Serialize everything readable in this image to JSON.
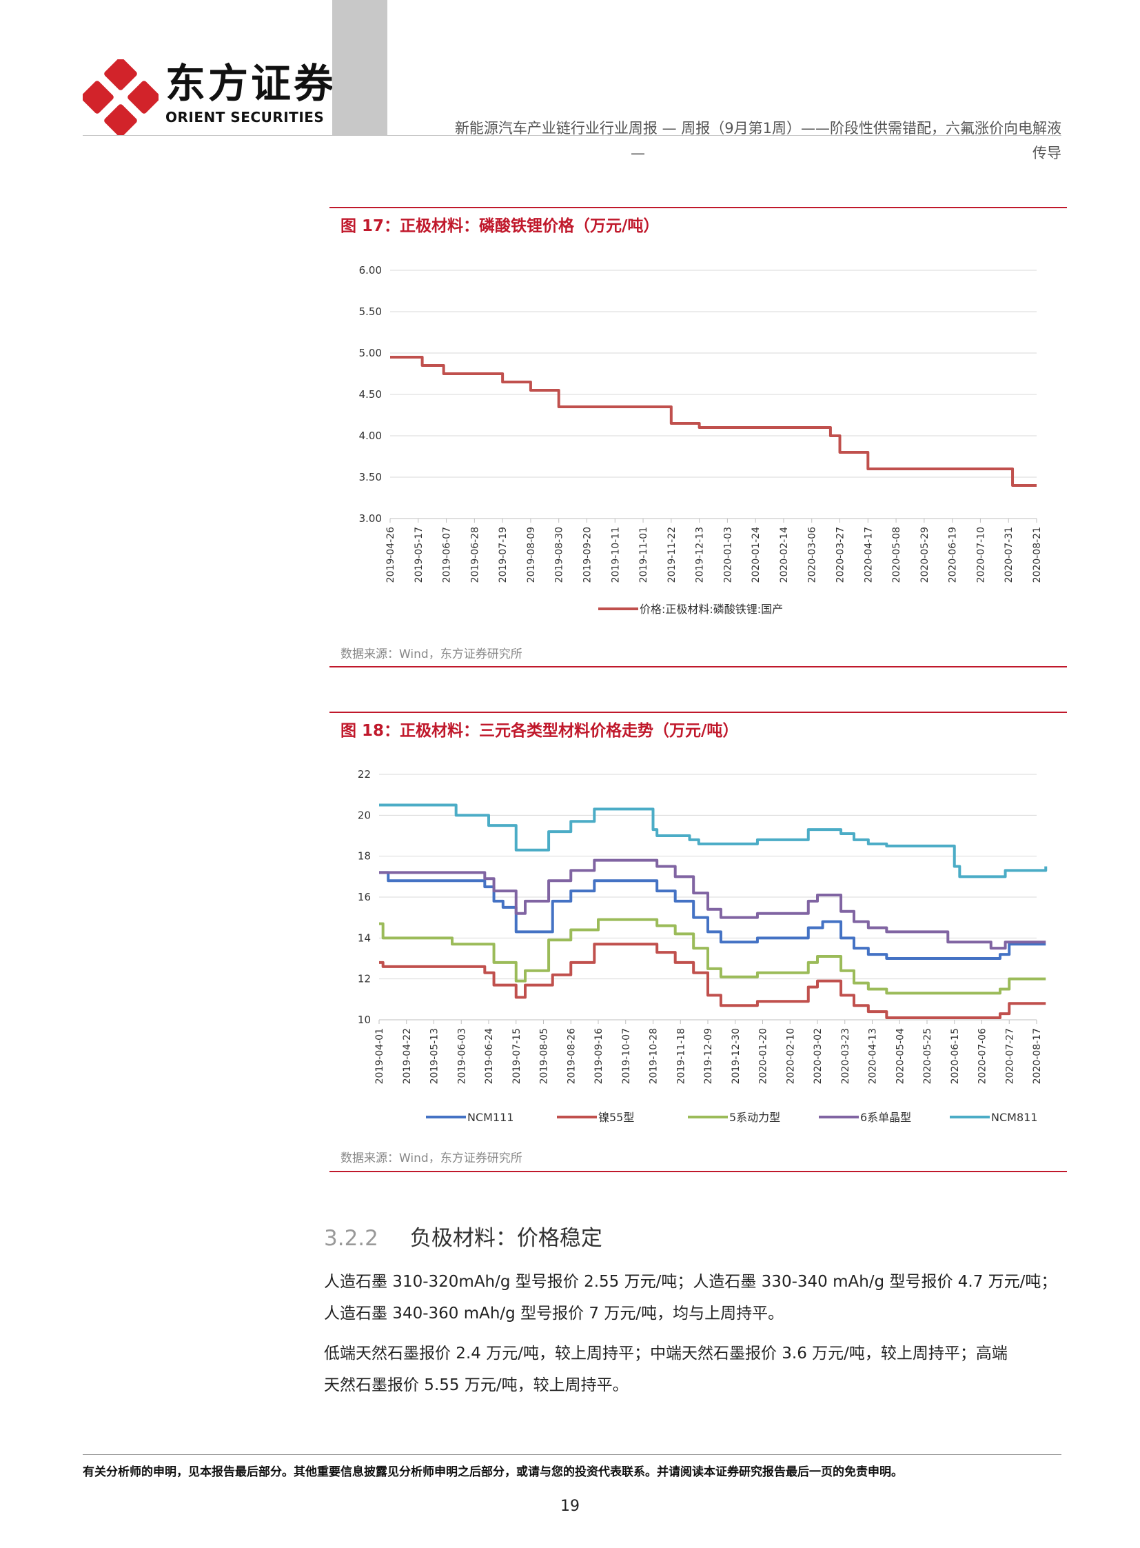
{
  "header": {
    "brand_cn": "东方证券",
    "brand_en": "ORIENT SECURITIES",
    "title_line1": "新能源汽车产业链行业行业周报 — 周报（9月第1周）——阶段性供需错配，六氟涨价向电解液",
    "title_line2_left": "—",
    "title_line2_right": "传导",
    "brand_color": "#d2232a"
  },
  "figure17": {
    "title": "图 17：正极材料：磷酸铁锂价格（万元/吨）",
    "source": "数据来源：Wind，东方证券研究所"
  },
  "figure18": {
    "title": "图 18：正极材料：三元各类型材料价格走势（万元/吨）",
    "source": "数据来源：Wind，东方证券研究所"
  },
  "chart_data": [
    {
      "type": "line",
      "step": true,
      "ylim": [
        3.0,
        6.0
      ],
      "yticks": [
        "3.00",
        "3.50",
        "4.00",
        "4.50",
        "5.00",
        "5.50",
        "6.00"
      ],
      "xlabels": [
        "2019-04-26",
        "2019-05-17",
        "2019-06-07",
        "2019-06-28",
        "2019-07-19",
        "2019-08-09",
        "2019-08-30",
        "2019-09-20",
        "2019-10-11",
        "2019-11-01",
        "2019-11-22",
        "2019-12-13",
        "2020-01-03",
        "2020-01-24",
        "2020-02-14",
        "2020-03-06",
        "2020-03-27",
        "2020-04-17",
        "2020-05-08",
        "2020-05-29",
        "2020-06-19",
        "2020-07-10",
        "2020-07-31",
        "2020-08-21"
      ],
      "legend_position": "bottom",
      "grid": true,
      "series": [
        {
          "name": "价格:正极材料:磷酸铁锂:国产",
          "color": "#c0504d",
          "points": [
            [
              "2019-04-26",
              4.95
            ],
            [
              "2019-05-20",
              4.85
            ],
            [
              "2019-06-05",
              4.75
            ],
            [
              "2019-07-19",
              4.65
            ],
            [
              "2019-08-09",
              4.55
            ],
            [
              "2019-08-30",
              4.35
            ],
            [
              "2019-11-22",
              4.15
            ],
            [
              "2019-12-13",
              4.1
            ],
            [
              "2020-03-20",
              4.0
            ],
            [
              "2020-03-27",
              3.8
            ],
            [
              "2020-04-17",
              3.6
            ],
            [
              "2020-07-31",
              3.6
            ],
            [
              "2020-08-03",
              3.4
            ],
            [
              "2020-08-21",
              3.4
            ]
          ]
        }
      ]
    },
    {
      "type": "line",
      "step": true,
      "ylim": [
        10,
        22
      ],
      "yticks": [
        "10",
        "12",
        "14",
        "16",
        "18",
        "20",
        "22"
      ],
      "xlabels": [
        "2019-04-01",
        "2019-04-22",
        "2019-05-13",
        "2019-06-03",
        "2019-06-24",
        "2019-07-15",
        "2019-08-05",
        "2019-08-26",
        "2019-09-16",
        "2019-10-07",
        "2019-10-28",
        "2019-11-18",
        "2019-12-09",
        "2019-12-30",
        "2020-01-20",
        "2020-02-10",
        "2020-03-02",
        "2020-03-23",
        "2020-04-13",
        "2020-05-04",
        "2020-05-25",
        "2020-06-15",
        "2020-07-06",
        "2020-07-27",
        "2020-08-17"
      ],
      "legend_position": "bottom",
      "grid": true,
      "series": [
        {
          "name": "NCM111",
          "color": "#4472c4",
          "points": [
            [
              "2019-04-01",
              17.2
            ],
            [
              "2019-04-08",
              16.8
            ],
            [
              "2019-06-21",
              16.5
            ],
            [
              "2019-06-28",
              15.8
            ],
            [
              "2019-07-05",
              15.5
            ],
            [
              "2019-07-15",
              14.3
            ],
            [
              "2019-08-12",
              15.8
            ],
            [
              "2019-08-26",
              16.3
            ],
            [
              "2019-09-13",
              16.8
            ],
            [
              "2019-10-31",
              16.3
            ],
            [
              "2019-11-14",
              15.8
            ],
            [
              "2019-11-28",
              15.0
            ],
            [
              "2019-12-09",
              14.3
            ],
            [
              "2019-12-19",
              13.8
            ],
            [
              "2020-01-16",
              14.0
            ],
            [
              "2020-02-24",
              14.5
            ],
            [
              "2020-03-06",
              14.8
            ],
            [
              "2020-03-20",
              14.0
            ],
            [
              "2020-03-30",
              13.5
            ],
            [
              "2020-04-10",
              13.2
            ],
            [
              "2020-04-24",
              13.0
            ],
            [
              "2020-07-20",
              13.2
            ],
            [
              "2020-07-27",
              13.7
            ],
            [
              "2020-08-24",
              13.7
            ]
          ]
        },
        {
          "name": "镍55型",
          "color": "#c0504d",
          "points": [
            [
              "2019-04-01",
              12.8
            ],
            [
              "2019-04-04",
              12.6
            ],
            [
              "2019-06-21",
              12.3
            ],
            [
              "2019-06-28",
              11.7
            ],
            [
              "2019-07-15",
              11.1
            ],
            [
              "2019-07-22",
              11.7
            ],
            [
              "2019-08-12",
              12.2
            ],
            [
              "2019-08-26",
              12.8
            ],
            [
              "2019-09-13",
              13.7
            ],
            [
              "2019-10-31",
              13.3
            ],
            [
              "2019-11-14",
              12.8
            ],
            [
              "2019-11-28",
              12.3
            ],
            [
              "2019-12-09",
              11.2
            ],
            [
              "2019-12-19",
              10.7
            ],
            [
              "2020-01-16",
              10.9
            ],
            [
              "2020-02-24",
              11.6
            ],
            [
              "2020-03-02",
              11.9
            ],
            [
              "2020-03-20",
              11.2
            ],
            [
              "2020-03-30",
              10.7
            ],
            [
              "2020-04-10",
              10.4
            ],
            [
              "2020-04-24",
              10.1
            ],
            [
              "2020-07-20",
              10.3
            ],
            [
              "2020-07-27",
              10.8
            ],
            [
              "2020-08-24",
              10.8
            ]
          ]
        },
        {
          "name": "5系动力型",
          "color": "#9bbb59",
          "points": [
            [
              "2019-04-01",
              14.7
            ],
            [
              "2019-04-04",
              14.0
            ],
            [
              "2019-05-27",
              13.7
            ],
            [
              "2019-06-28",
              12.8
            ],
            [
              "2019-07-15",
              11.9
            ],
            [
              "2019-07-22",
              12.4
            ],
            [
              "2019-08-09",
              13.9
            ],
            [
              "2019-08-26",
              14.4
            ],
            [
              "2019-09-16",
              14.9
            ],
            [
              "2019-10-31",
              14.6
            ],
            [
              "2019-11-14",
              14.2
            ],
            [
              "2019-11-28",
              13.5
            ],
            [
              "2019-12-09",
              12.5
            ],
            [
              "2019-12-19",
              12.1
            ],
            [
              "2020-01-16",
              12.3
            ],
            [
              "2020-02-24",
              12.8
            ],
            [
              "2020-03-02",
              13.1
            ],
            [
              "2020-03-20",
              12.4
            ],
            [
              "2020-03-30",
              11.8
            ],
            [
              "2020-04-10",
              11.5
            ],
            [
              "2020-04-24",
              11.3
            ],
            [
              "2020-07-20",
              11.5
            ],
            [
              "2020-07-27",
              12.0
            ],
            [
              "2020-08-24",
              12.0
            ]
          ]
        },
        {
          "name": "6系单晶型",
          "color": "#8064a2",
          "points": [
            [
              "2019-04-01",
              17.2
            ],
            [
              "2019-06-21",
              16.9
            ],
            [
              "2019-06-28",
              16.3
            ],
            [
              "2019-07-15",
              15.2
            ],
            [
              "2019-07-22",
              15.8
            ],
            [
              "2019-08-09",
              16.8
            ],
            [
              "2019-08-26",
              17.3
            ],
            [
              "2019-09-13",
              17.8
            ],
            [
              "2019-10-31",
              17.5
            ],
            [
              "2019-11-14",
              17.0
            ],
            [
              "2019-11-28",
              16.2
            ],
            [
              "2019-12-09",
              15.4
            ],
            [
              "2019-12-19",
              15.0
            ],
            [
              "2020-01-16",
              15.2
            ],
            [
              "2020-02-24",
              15.8
            ],
            [
              "2020-03-02",
              16.1
            ],
            [
              "2020-03-20",
              15.3
            ],
            [
              "2020-03-30",
              14.8
            ],
            [
              "2020-04-10",
              14.5
            ],
            [
              "2020-04-24",
              14.3
            ],
            [
              "2020-06-10",
              13.8
            ],
            [
              "2020-07-13",
              13.5
            ],
            [
              "2020-07-24",
              13.8
            ],
            [
              "2020-08-24",
              13.8
            ]
          ]
        },
        {
          "name": "NCM811",
          "color": "#4bacc6",
          "points": [
            [
              "2019-04-01",
              20.5
            ],
            [
              "2019-05-30",
              20.0
            ],
            [
              "2019-06-24",
              19.5
            ],
            [
              "2019-07-15",
              18.3
            ],
            [
              "2019-08-09",
              19.2
            ],
            [
              "2019-08-26",
              19.7
            ],
            [
              "2019-09-13",
              20.3
            ],
            [
              "2019-10-28",
              19.3
            ],
            [
              "2019-10-31",
              19.0
            ],
            [
              "2019-11-25",
              18.8
            ],
            [
              "2019-12-02",
              18.6
            ],
            [
              "2020-01-16",
              18.8
            ],
            [
              "2020-02-24",
              19.3
            ],
            [
              "2020-03-20",
              19.1
            ],
            [
              "2020-03-30",
              18.8
            ],
            [
              "2020-04-10",
              18.6
            ],
            [
              "2020-04-24",
              18.5
            ],
            [
              "2020-06-15",
              17.5
            ],
            [
              "2020-06-19",
              17.0
            ],
            [
              "2020-07-24",
              17.3
            ],
            [
              "2020-08-24",
              17.5
            ]
          ]
        }
      ]
    }
  ],
  "section": {
    "number": "3.2.2",
    "title": "负极材料：价格稳定",
    "p1_line1": "人造石墨 310-320mAh/g 型号报价 2.55 万元/吨；人造石墨 330-340 mAh/g 型号报价 4.7 万元/吨；",
    "p1_line2": "人造石墨 340-360 mAh/g 型号报价 7 万元/吨，均与上周持平。",
    "p2_line1": "低端天然石墨报价 2.4 万元/吨，较上周持平；中端天然石墨报价 3.6 万元/吨，较上周持平；高端",
    "p2_line2": "天然石墨报价 5.55 万元/吨，较上周持平。"
  },
  "footer": {
    "note": "有关分析师的申明，见本报告最后部分。其他重要信息披露见分析师申明之后部分，或请与您的投资代表联系。并请阅读本证券研究报告最后一页的免责申明。",
    "page_number": "19"
  }
}
